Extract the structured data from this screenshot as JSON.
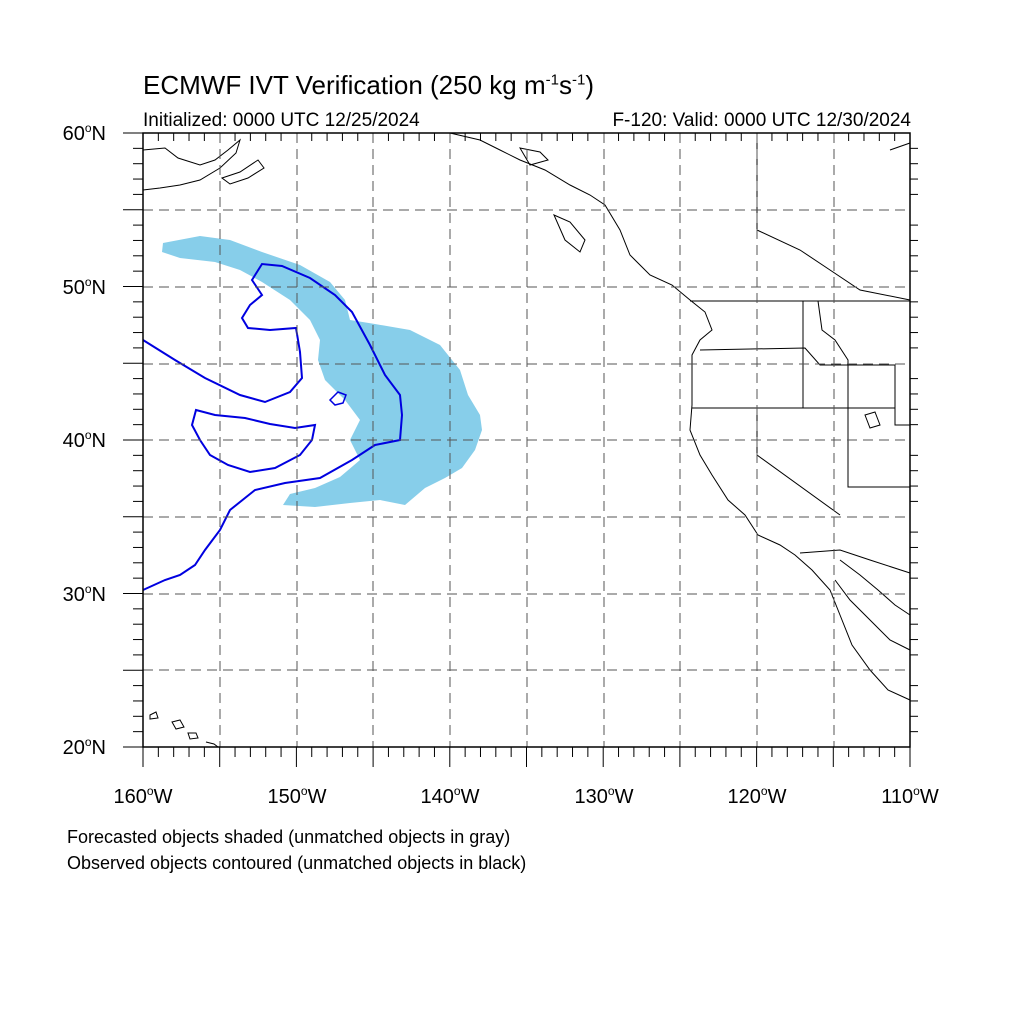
{
  "header": {
    "title_main": "ECMWF IVT Verification (250 kg m",
    "title_sup1": "-1",
    "title_mid": "s",
    "title_sup2": "-1",
    "title_end": ")",
    "initialized": "Initialized: 0000 UTC 12/25/2024",
    "valid": "F-120: Valid: 0000 UTC 12/30/2024"
  },
  "axes": {
    "lat_labels": [
      {
        "text": "60",
        "suffix": "N"
      },
      {
        "text": "50",
        "suffix": "N"
      },
      {
        "text": "40",
        "suffix": "N"
      },
      {
        "text": "30",
        "suffix": "N"
      },
      {
        "text": "20",
        "suffix": "N"
      }
    ],
    "lon_labels": [
      {
        "text": "160",
        "suffix": "W"
      },
      {
        "text": "150",
        "suffix": "W"
      },
      {
        "text": "140",
        "suffix": "W"
      },
      {
        "text": "130",
        "suffix": "W"
      },
      {
        "text": "120",
        "suffix": "W"
      },
      {
        "text": "110",
        "suffix": "W"
      }
    ],
    "degree_symbol": "o",
    "lat_range": [
      20,
      60
    ],
    "lon_range": [
      -160,
      -110
    ],
    "grid_spacing_deg": 5
  },
  "legend_notes": {
    "line1": "Forecasted objects shaded (unmatched objects in gray)",
    "line2": "Observed objects contoured (unmatched objects in black)"
  },
  "colors": {
    "forecast_fill": "#87ceea",
    "observed_contour": "#0000e0",
    "coastline": "#000000",
    "grid": "#555555"
  }
}
